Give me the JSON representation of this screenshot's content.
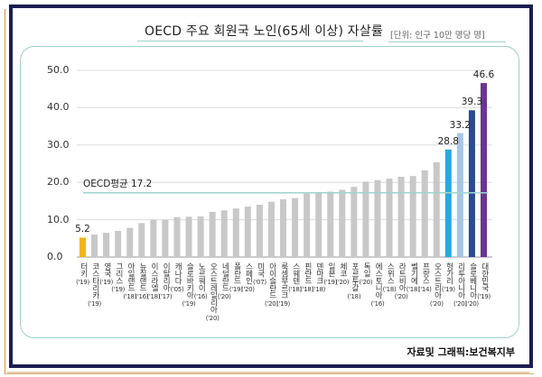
{
  "title": "OECD 주요 회원국 노인(65세 이상) 자살률",
  "unit": "[단위: 인구 10만 명당 명]",
  "source": "자료및 그래픽:보건복지부",
  "chart_data": {
    "type": "bar",
    "title": "OECD 주요 회원국 노인(65세 이상) 자살률",
    "ylabel": "",
    "xlabel": "",
    "ylim": [
      0,
      50
    ],
    "yticks": [
      "0.0",
      "10.0",
      "20.0",
      "30.0",
      "40.0",
      "50.0"
    ],
    "grid": true,
    "reference_line": {
      "label": "OECD평균 17.2",
      "value": 17.2,
      "color": "#9fd3cf"
    },
    "bars": [
      {
        "country": "터키",
        "year": "('19)",
        "value": 5.2,
        "value_label": "5.2",
        "color": "#f0b41e"
      },
      {
        "country": "코스타리카",
        "year": "('19)",
        "value": 6.0,
        "color": "#c8c8c8"
      },
      {
        "country": "영국",
        "year": "('19)",
        "value": 6.5,
        "color": "#c8c8c8"
      },
      {
        "country": "그리스",
        "year": "('19)",
        "value": 7.0,
        "color": "#c8c8c8"
      },
      {
        "country": "아일랜드",
        "year": "('18)",
        "value": 7.8,
        "color": "#c8c8c8"
      },
      {
        "country": "뉴질랜드",
        "year": "('16)",
        "value": 9.1,
        "color": "#c8c8c8"
      },
      {
        "country": "이스라엘",
        "year": "('18)",
        "value": 10.0,
        "color": "#c8c8c8"
      },
      {
        "country": "이탈리아",
        "year": "('17)",
        "value": 10.0,
        "color": "#c8c8c8"
      },
      {
        "country": "캐나다",
        "year": "('05)",
        "value": 10.7,
        "color": "#c8c8c8"
      },
      {
        "country": "슬로바키아",
        "year": "('19)",
        "value": 10.8,
        "color": "#c8c8c8"
      },
      {
        "country": "노르웨이",
        "year": "('16)",
        "value": 10.9,
        "color": "#c8c8c8"
      },
      {
        "country": "오스트레일리아",
        "year": "('20)",
        "value": 12.1,
        "color": "#c8c8c8"
      },
      {
        "country": "네덜란드",
        "year": "('20)",
        "value": 12.5,
        "color": "#c8c8c8"
      },
      {
        "country": "폴란드",
        "year": "('19)",
        "value": 13.0,
        "color": "#c8c8c8"
      },
      {
        "country": "스페인",
        "year": "('20)",
        "value": 13.5,
        "color": "#c8c8c8"
      },
      {
        "country": "미국",
        "year": "('07)",
        "value": 14.0,
        "color": "#c8c8c8"
      },
      {
        "country": "아이슬란드",
        "year": "('20)",
        "value": 14.8,
        "color": "#c8c8c8"
      },
      {
        "country": "룩셈부르크",
        "year": "('19)",
        "value": 15.5,
        "color": "#c8c8c8"
      },
      {
        "country": "스웨덴",
        "year": "('18)",
        "value": 15.8,
        "color": "#c8c8c8"
      },
      {
        "country": "핀란드",
        "year": "('18)",
        "value": 17.0,
        "color": "#c8c8c8"
      },
      {
        "country": "덴마크",
        "year": "('18)",
        "value": 17.4,
        "color": "#c8c8c8"
      },
      {
        "country": "일본",
        "year": "('19)",
        "value": 17.5,
        "color": "#c8c8c8"
      },
      {
        "country": "체코",
        "year": "('20)",
        "value": 18.0,
        "color": "#c8c8c8"
      },
      {
        "country": "포르투갈",
        "year": "('18)",
        "value": 18.8,
        "color": "#c8c8c8"
      },
      {
        "country": "독일",
        "year": "('20)",
        "value": 20.2,
        "color": "#c8c8c8"
      },
      {
        "country": "에스토니아",
        "year": "('16)",
        "value": 20.6,
        "color": "#c8c8c8"
      },
      {
        "country": "스위스",
        "year": "('18)",
        "value": 21.0,
        "color": "#c8c8c8"
      },
      {
        "country": "라트비아",
        "year": "('20)",
        "value": 21.5,
        "color": "#c8c8c8"
      },
      {
        "country": "벨기에",
        "year": "('18)",
        "value": 21.7,
        "color": "#c8c8c8"
      },
      {
        "country": "프랑스",
        "year": "('14)",
        "value": 23.2,
        "color": "#c8c8c8"
      },
      {
        "country": "오스트리아",
        "year": "('20)",
        "value": 25.4,
        "color": "#c8c8c8"
      },
      {
        "country": "헝가리",
        "year": "('19)",
        "value": 28.8,
        "value_label": "28.8",
        "color": "#29a8e0"
      },
      {
        "country": "리투아니아",
        "year": "('20)",
        "value": 33.2,
        "value_label": "33.2",
        "color": "#a7c6e6"
      },
      {
        "country": "슬로베니아",
        "year": "('20)",
        "value": 39.3,
        "value_label": "39.3",
        "color": "#2a4b8d"
      },
      {
        "country": "대한민국",
        "year": "('19)",
        "value": 46.6,
        "value_label": "46.6",
        "color": "#6a3591"
      }
    ]
  }
}
